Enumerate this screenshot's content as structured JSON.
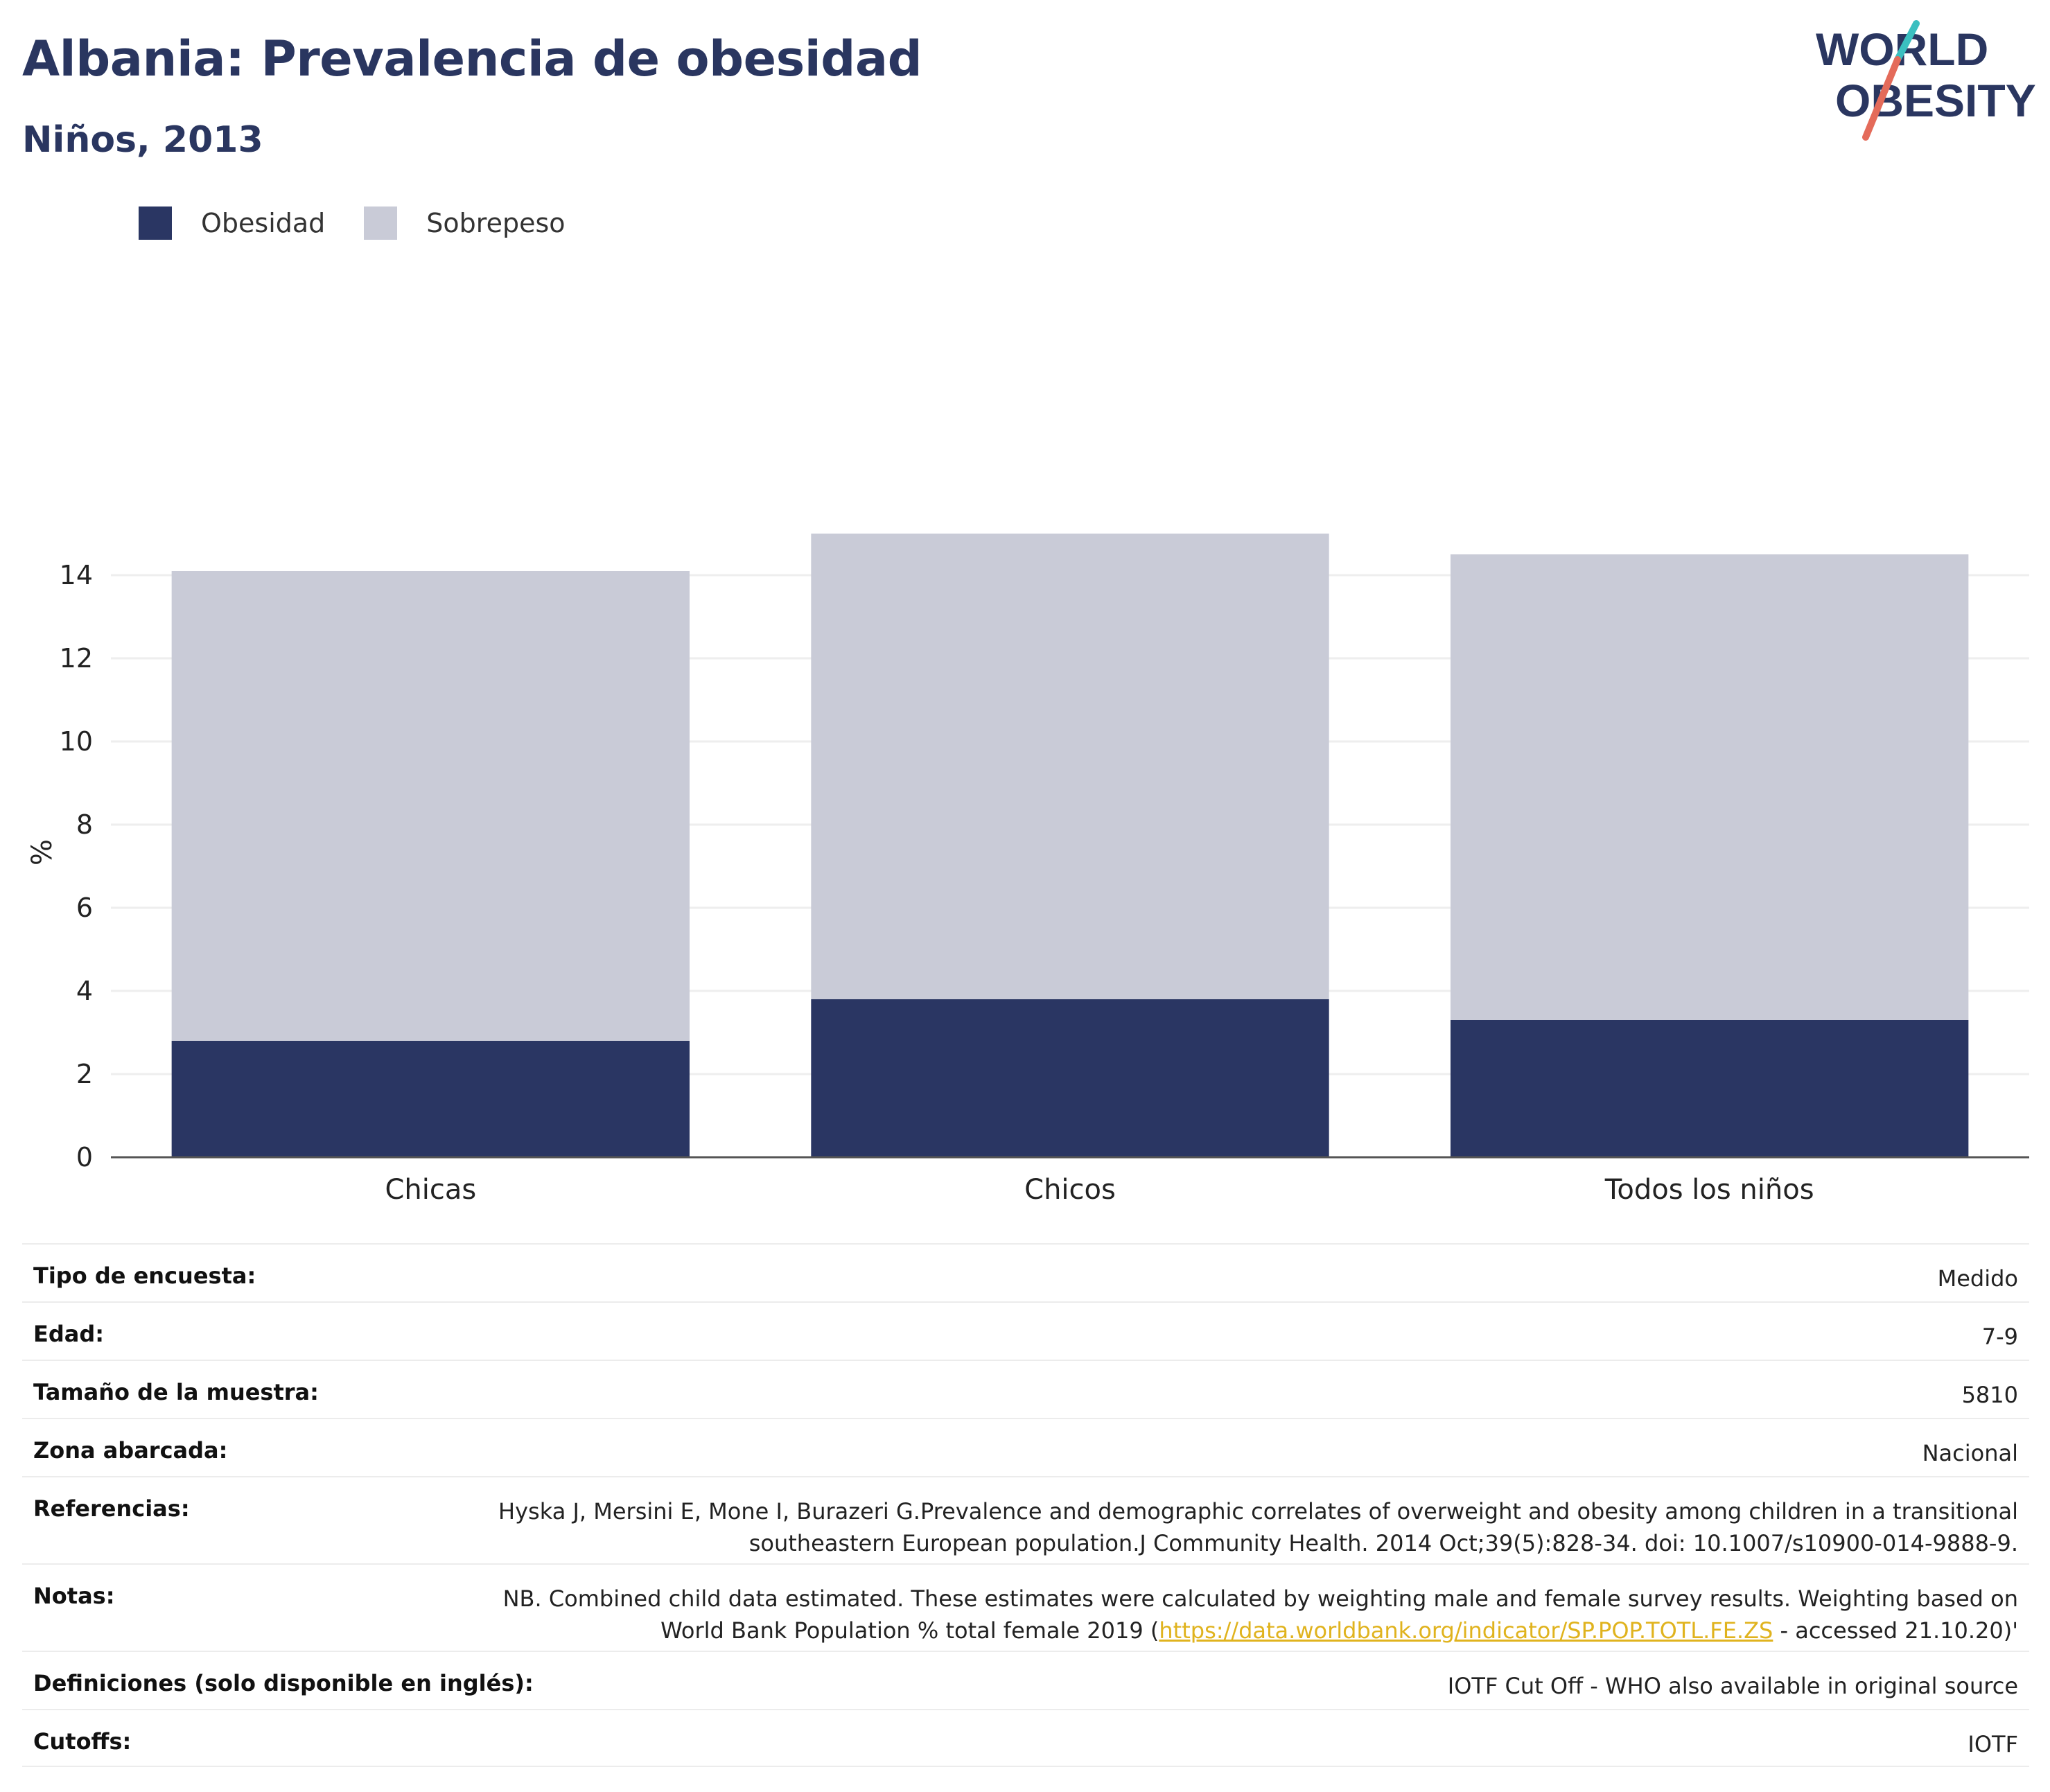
{
  "header": {
    "title": "Albania: Prevalencia de obesidad",
    "subtitle": "Niños, 2013"
  },
  "logo": {
    "line1": "WORLD",
    "line2": "OBESITY",
    "accent_top": "#3bbfc0",
    "accent_bottom": "#e46b5a",
    "text_color": "#2a3660"
  },
  "colors": {
    "obesity": "#2a3663",
    "overweight": "#c9cbd7",
    "grid": "#eeeeee",
    "axis": "#555555"
  },
  "chart_data": {
    "type": "bar",
    "stacked": true,
    "categories": [
      "Chicas",
      "Chicos",
      "Todos los niños"
    ],
    "series": [
      {
        "name": "Obesidad",
        "values": [
          2.8,
          3.8,
          3.3
        ]
      },
      {
        "name": "Sobrepeso",
        "values": [
          11.3,
          11.2,
          11.2
        ]
      }
    ],
    "ylabel": "%",
    "xlabel": "",
    "ylim": [
      0,
      16
    ],
    "yticks": [
      0,
      2,
      4,
      6,
      8,
      10,
      12,
      14
    ],
    "grid": true,
    "legend": "top-left"
  },
  "info": {
    "rows": [
      {
        "key": "Tipo de encuesta:",
        "value": "Medido"
      },
      {
        "key": "Edad:",
        "value": "7-9"
      },
      {
        "key": "Tamaño de la muestra:",
        "value": "5810"
      },
      {
        "key": "Zona abarcada:",
        "value": "Nacional"
      },
      {
        "key": "Referencias:",
        "value": "Hyska J, Mersini E, Mone I, Burazeri G.Prevalence and demographic correlates of overweight and obesity among children in a transitional southeastern European population.J Community Health. 2014 Oct;39(5):828-34. doi: 10.1007/s10900-014-9888-9."
      },
      {
        "key": "Notas:",
        "value_before": "NB. Combined child data estimated. These estimates were calculated by weighting male and female survey results. Weighting based on World Bank Population % total female 2019 (",
        "link": "https://data.worldbank.org/indicator/SP.POP.TOTL.FE.ZS",
        "value_after": " - accessed 21.10.20)'"
      },
      {
        "key": "Definiciones (solo disponible en inglés):",
        "value": "IOTF Cut Off - WHO also available in original source"
      },
      {
        "key": "Cutoffs:",
        "value": "IOTF"
      }
    ]
  }
}
